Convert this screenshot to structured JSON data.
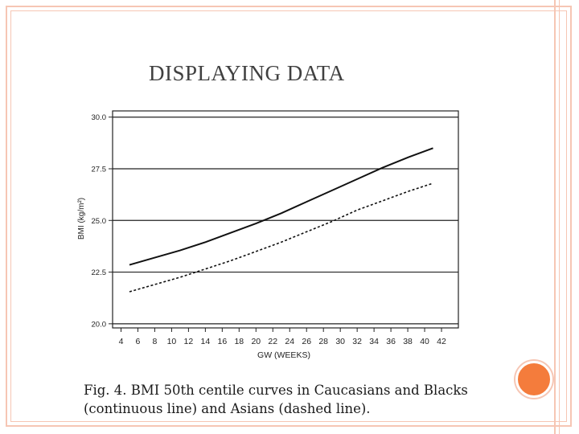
{
  "slide": {
    "title": "DISPLAYING DATA",
    "caption": "Fig. 4. BMI 50th centile curves in Caucasians and Blacks (continuous line) and Asians (dashed line).",
    "accent_color": "#f47c3c",
    "frame_color": "#f6c6b4"
  },
  "chart_data": {
    "type": "line",
    "xlabel": "GW (WEEKS)",
    "ylabel": "BMI (kg/m²)",
    "xlim": [
      3,
      44
    ],
    "ylim": [
      19.8,
      30.3
    ],
    "xticks": [
      4,
      6,
      8,
      10,
      12,
      14,
      16,
      18,
      20,
      22,
      24,
      26,
      28,
      30,
      32,
      34,
      36,
      38,
      40,
      42
    ],
    "yticks": [
      20.0,
      22.5,
      25.0,
      27.5,
      30.0
    ],
    "ytick_labels": [
      "20.0",
      "22.5",
      "25.0",
      "27.5",
      "30.0"
    ],
    "grid_horizontal": true,
    "x": [
      5,
      8,
      11,
      14,
      17,
      20,
      23,
      26,
      29,
      32,
      35,
      38,
      41
    ],
    "series": [
      {
        "style": "solid",
        "values": [
          22.85,
          23.2,
          23.55,
          23.95,
          24.4,
          24.85,
          25.35,
          25.9,
          26.45,
          27.0,
          27.55,
          28.05,
          28.5
        ]
      },
      {
        "style": "dashed",
        "values": [
          21.55,
          21.9,
          22.25,
          22.65,
          23.05,
          23.5,
          23.95,
          24.45,
          24.95,
          25.5,
          25.95,
          26.4,
          26.8
        ]
      }
    ]
  }
}
